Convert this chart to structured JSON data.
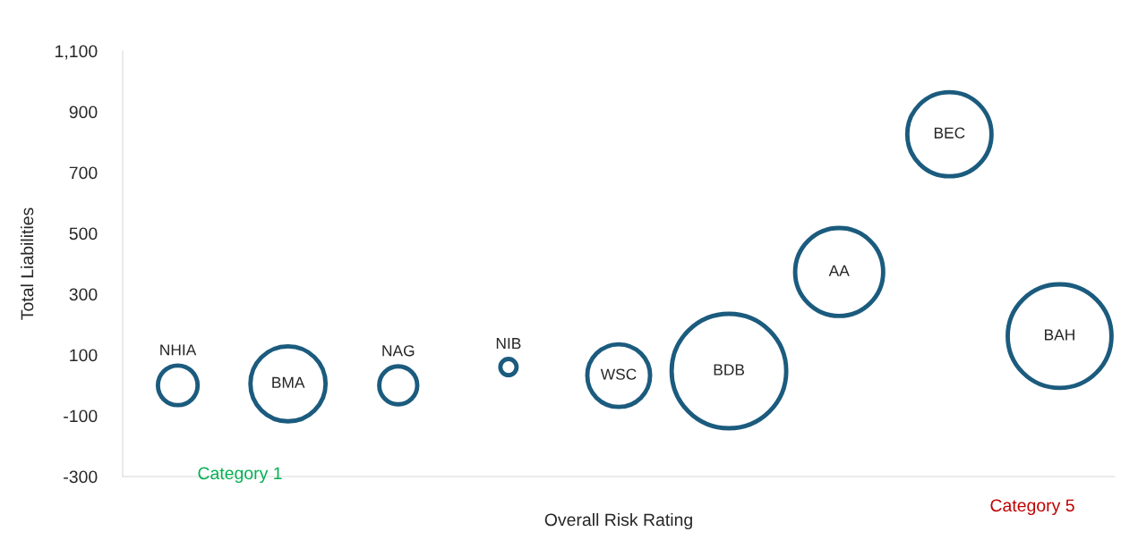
{
  "chart_data": {
    "type": "bubble",
    "xlabel": "Overall Risk Rating",
    "ylabel": "Total Liabilities",
    "categories": [
      null,
      null,
      null,
      null,
      null,
      null,
      null,
      null,
      null
    ],
    "series": [
      {
        "color": "#1b5b7e",
        "values": [
          0,
          5,
          0,
          60,
          32,
          47,
          373,
          826,
          162
        ],
        "sizes": [
          0.12,
          0.43,
          0.11,
          0.02,
          0.3,
          1.0,
          0.59,
          0.54,
          0.82
        ],
        "value_labels": [
          "NHIA",
          "BMA",
          "NAG",
          "NIB",
          "WSC",
          "BDB",
          "AA",
          "BEC",
          "BAH"
        ]
      }
    ],
    "annotations": [
      "Category 1",
      "Category 5"
    ],
    "ylim": [
      -300,
      1100
    ],
    "yticks": [
      {
        "value": -300,
        "label": "-300"
      },
      {
        "value": -100,
        "label": "-100"
      },
      100,
      300,
      500,
      700,
      900,
      {
        "value": 1100,
        "label": "1,100"
      }
    ],
    "grid": false,
    "legend": false
  }
}
